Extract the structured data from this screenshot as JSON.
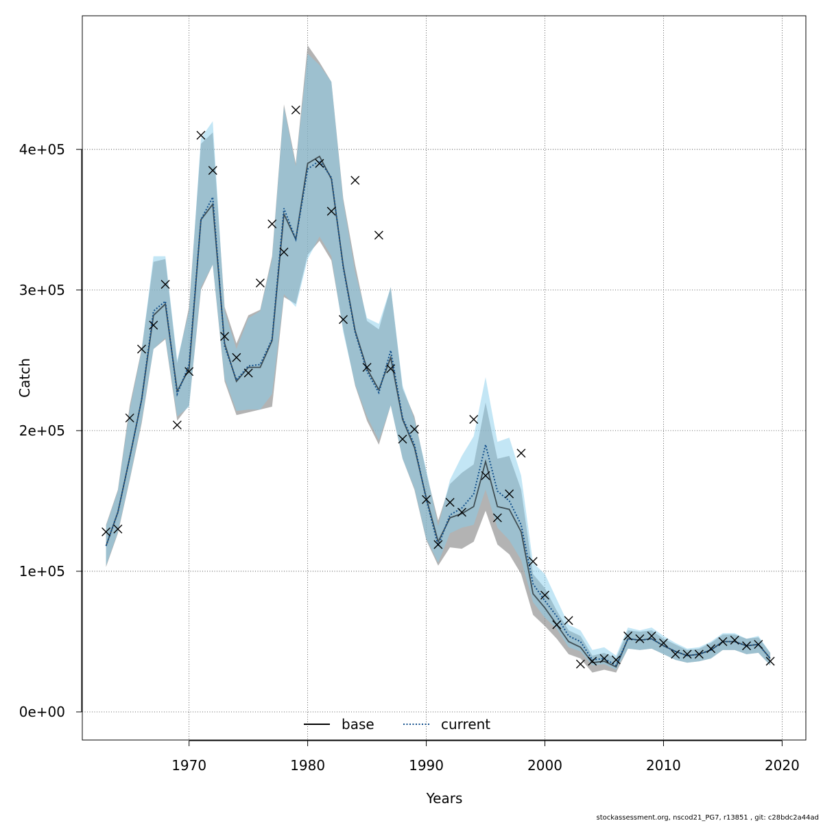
{
  "chart_data": {
    "type": "line",
    "xlabel": "Years",
    "ylabel": "Catch",
    "xlim": [
      1961,
      2022
    ],
    "ylim": [
      -20000,
      495000
    ],
    "xticks": [
      1970,
      1980,
      1990,
      2000,
      2010,
      2020
    ],
    "xtick_labels": [
      "1970",
      "1980",
      "1990",
      "2000",
      "2010",
      "2020"
    ],
    "yticks": [
      0,
      100000,
      200000,
      300000,
      400000
    ],
    "ytick_labels": [
      "0e+00",
      "1e+05",
      "2e+05",
      "3e+05",
      "4e+05"
    ],
    "grid": true,
    "legend_position": "bottom-center",
    "colors": {
      "base_band": "#808080",
      "current_band": "#87ceeb",
      "base_line": "#000000",
      "current_line": "#104e8b"
    },
    "years": [
      1963,
      1964,
      1965,
      1966,
      1967,
      1968,
      1969,
      1970,
      1971,
      1972,
      1973,
      1974,
      1975,
      1976,
      1977,
      1978,
      1979,
      1980,
      1981,
      1982,
      1983,
      1984,
      1985,
      1986,
      1987,
      1988,
      1989,
      1990,
      1991,
      1992,
      1993,
      1994,
      1995,
      1996,
      1997,
      1998,
      1999,
      2000,
      2001,
      2002,
      2003,
      2004,
      2005,
      2006,
      2007,
      2008,
      2009,
      2010,
      2011,
      2012,
      2013,
      2014,
      2015,
      2016,
      2017,
      2018,
      2019
    ],
    "series": [
      {
        "name": "base",
        "line_style": "solid",
        "estimate": [
          118000,
          142000,
          181000,
          222000,
          282000,
          290000,
          228000,
          244000,
          350000,
          361000,
          262000,
          235000,
          245000,
          245000,
          264000,
          354000,
          336000,
          390000,
          395000,
          379000,
          317000,
          271000,
          244000,
          229000,
          252000,
          208000,
          188000,
          152000,
          121000,
          138000,
          141000,
          146000,
          178000,
          146000,
          144000,
          128000,
          84000,
          74000,
          62000,
          50000,
          46000,
          35000,
          36000,
          32000,
          52000,
          51000,
          52000,
          47000,
          43000,
          40000,
          41000,
          44000,
          50000,
          50000,
          47000,
          48000,
          38000
        ],
        "lower": [
          103000,
          127000,
          165000,
          205000,
          258000,
          265000,
          207000,
          218000,
          300000,
          318000,
          235000,
          211000,
          213000,
          215000,
          217000,
          295000,
          290000,
          325000,
          335000,
          321000,
          272000,
          232000,
          207000,
          190000,
          218000,
          180000,
          158000,
          122000,
          104000,
          117000,
          116000,
          121000,
          143000,
          119000,
          112000,
          98000,
          69000,
          61000,
          52000,
          41000,
          38000,
          28000,
          30000,
          28000,
          45000,
          44000,
          45000,
          41000,
          37000,
          35000,
          36000,
          38000,
          44000,
          44000,
          41000,
          42000,
          33000
        ],
        "upper": [
          133000,
          158000,
          218000,
          258000,
          320000,
          322000,
          248000,
          288000,
          404000,
          412000,
          288000,
          262000,
          282000,
          286000,
          324000,
          432000,
          390000,
          474000,
          462000,
          448000,
          365000,
          318000,
          278000,
          272000,
          302000,
          230000,
          210000,
          170000,
          136000,
          162000,
          170000,
          176000,
          220000,
          180000,
          182000,
          158000,
          98000,
          88000,
          72000,
          58000,
          54000,
          40000,
          42000,
          38000,
          58000,
          57000,
          58000,
          52000,
          48000,
          44000,
          45000,
          49000,
          55000,
          55000,
          52000,
          53000,
          42000
        ]
      },
      {
        "name": "current",
        "line_style": "dotted",
        "estimate": [
          118000,
          142000,
          181000,
          222000,
          285000,
          292000,
          226000,
          247000,
          350000,
          366000,
          260000,
          236000,
          246000,
          247000,
          265000,
          358000,
          336000,
          386000,
          392000,
          380000,
          316000,
          270000,
          242000,
          227000,
          257000,
          209000,
          190000,
          151000,
          118000,
          140000,
          145000,
          155000,
          190000,
          157000,
          150000,
          133000,
          91000,
          79000,
          68000,
          54000,
          50000,
          37000,
          38000,
          33000,
          52000,
          51000,
          52000,
          47000,
          43000,
          40000,
          41000,
          44000,
          50000,
          50000,
          47000,
          48000,
          38000
        ],
        "lower": [
          104000,
          128000,
          166000,
          207000,
          258000,
          266000,
          210000,
          217000,
          302000,
          318000,
          237000,
          214000,
          215000,
          215000,
          226000,
          297000,
          288000,
          322000,
          338000,
          324000,
          270000,
          233000,
          210000,
          193000,
          218000,
          180000,
          159000,
          123000,
          106000,
          127000,
          131000,
          133000,
          158000,
          131000,
          122000,
          108000,
          78000,
          67000,
          59000,
          46000,
          43000,
          33000,
          34000,
          30000,
          45000,
          44000,
          45000,
          41000,
          37000,
          35000,
          36000,
          38000,
          44000,
          44000,
          41000,
          42000,
          33000
        ],
        "upper": [
          132000,
          157000,
          215000,
          257000,
          324000,
          324000,
          250000,
          285000,
          408000,
          420000,
          285000,
          258000,
          280000,
          285000,
          322000,
          430000,
          388000,
          468000,
          460000,
          448000,
          363000,
          313000,
          280000,
          276000,
          302000,
          232000,
          208000,
          172000,
          132000,
          165000,
          182000,
          196000,
          238000,
          192000,
          195000,
          168000,
          106000,
          98000,
          80000,
          62000,
          58000,
          44000,
          46000,
          40000,
          60000,
          58000,
          60000,
          54000,
          49000,
          45000,
          46000,
          50000,
          56000,
          56000,
          52000,
          54000,
          42000
        ]
      },
      {
        "name": "observed",
        "marker": "x",
        "years": [
          1963,
          1964,
          1965,
          1966,
          1967,
          1968,
          1969,
          1970,
          1971,
          1972,
          1973,
          1974,
          1975,
          1976,
          1977,
          1978,
          1979,
          1981,
          1982,
          1983,
          1984,
          1985,
          1986,
          1987,
          1988,
          1989,
          1990,
          1991,
          1992,
          1993,
          1994,
          1995,
          1996,
          1997,
          1998,
          1999,
          2000,
          2001,
          2002,
          2003,
          2004,
          2005,
          2006,
          2007,
          2008,
          2009,
          2010,
          2011,
          2012,
          2013,
          2014,
          2015,
          2016,
          2017,
          2018,
          2019
        ],
        "values": [
          128000,
          130000,
          209000,
          258000,
          275000,
          304000,
          204000,
          242000,
          410000,
          385000,
          267000,
          252000,
          241000,
          305000,
          347000,
          327000,
          428000,
          390000,
          356000,
          279000,
          378000,
          245000,
          339000,
          244000,
          194000,
          201000,
          151000,
          119000,
          149000,
          142000,
          208000,
          168000,
          138000,
          155000,
          184000,
          107000,
          83000,
          62000,
          65000,
          34000,
          36000,
          38000,
          37000,
          54000,
          52000,
          54000,
          49000,
          41000,
          41000,
          41000,
          45000,
          50000,
          51000,
          47000,
          48000,
          36000
        ]
      }
    ]
  },
  "legend": {
    "items": [
      {
        "label": "base"
      },
      {
        "label": "current"
      }
    ]
  },
  "footer": "stockassessment.org, nscod21_PG7, r13851 , git: c28bdc2a44ad"
}
